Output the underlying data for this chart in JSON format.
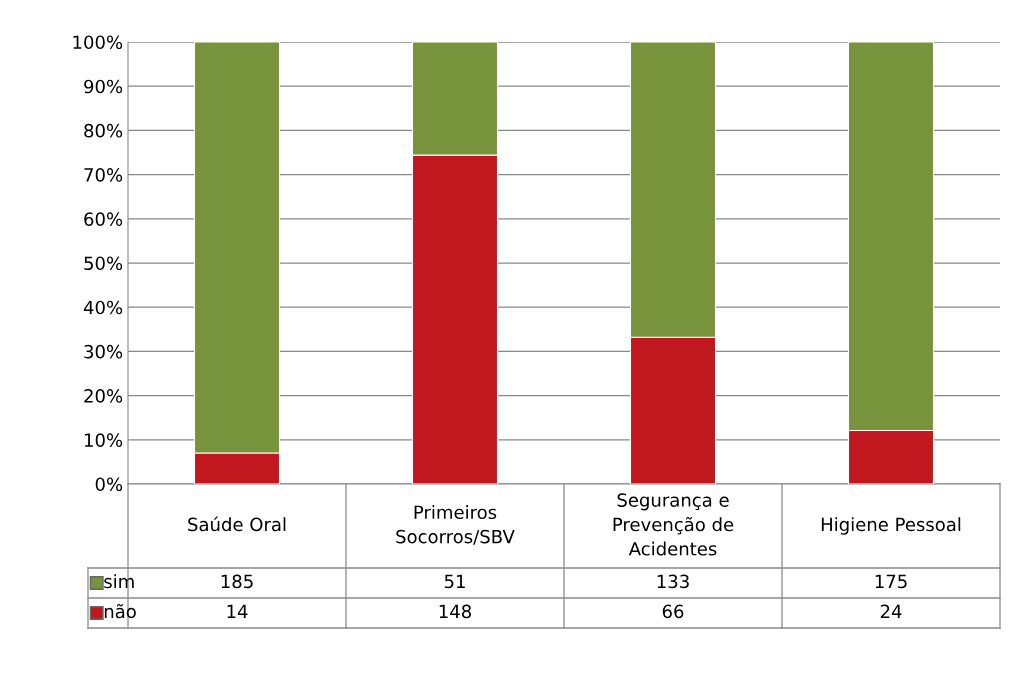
{
  "chart_data": {
    "type": "bar",
    "stacked": true,
    "categories": [
      "Saúde Oral",
      "Primeiros\nSocorros/SBV",
      "Segurança e\nPrevenção de\nAcidentes",
      "Higiene Pessoal"
    ],
    "series": [
      {
        "name": "não",
        "color": "#c0181e",
        "values": [
          7.0,
          74.4,
          33.2,
          12.1
        ]
      },
      {
        "name": "sim",
        "color": "#77933c",
        "values": [
          93.0,
          25.6,
          66.8,
          87.9
        ]
      }
    ],
    "annotations": [
      "185",
      "51",
      "133",
      "175",
      "14",
      "148",
      "66",
      "24"
    ],
    "ylim": [
      0,
      100
    ],
    "yticks": [
      {
        "value": 0,
        "label": "0%"
      },
      {
        "value": 10,
        "label": "10%"
      },
      {
        "value": 20,
        "label": "20%"
      },
      {
        "value": 30,
        "label": "30%"
      },
      {
        "value": 40,
        "label": "40%"
      },
      {
        "value": 50,
        "label": "50%"
      },
      {
        "value": 60,
        "label": "60%"
      },
      {
        "value": 70,
        "label": "70%"
      },
      {
        "value": 80,
        "label": "80%"
      },
      {
        "value": 90,
        "label": "90%"
      },
      {
        "value": 100,
        "label": "100%"
      }
    ],
    "grid": "y",
    "legend": "bottom"
  }
}
